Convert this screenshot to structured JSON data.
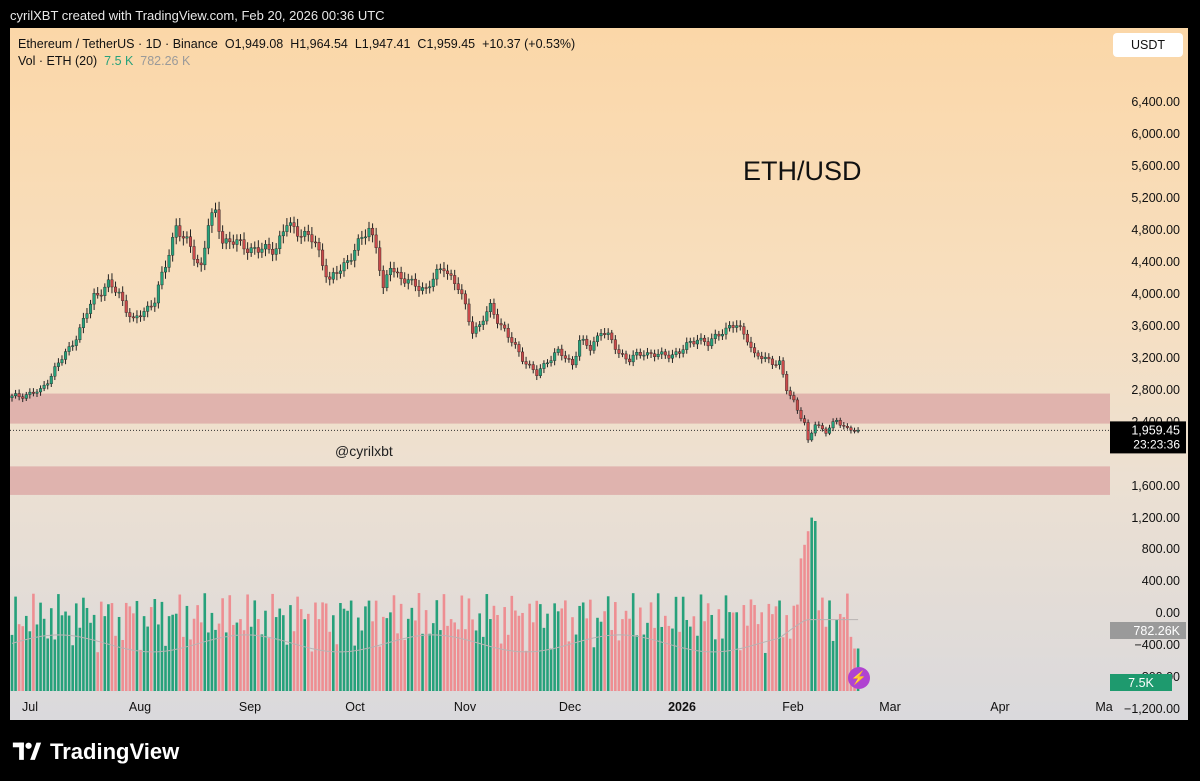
{
  "header": {
    "attribution": "cyrilXBT created with TradingView.com, Feb 20, 2026 00:36 UTC"
  },
  "legend": {
    "symbol": "Ethereum / TetherUS · 1D · Binance",
    "o_label": "O",
    "open": "1,949.08",
    "h_label": "H",
    "high": "1,964.54",
    "l_label": "L",
    "low": "1,947.41",
    "c_label": "C",
    "close": "1,959.45",
    "change": "+10.37 (+0.53%)",
    "vol_label": "Vol · ETH (20)",
    "vol_value": "7.5 K",
    "vol_ma_value": "782.26 K"
  },
  "currency": "USDT",
  "annotation": "ETH/USD",
  "watermark": "@cyrilxbt",
  "brand": "TradingView",
  "colors": {
    "up": "#26a17b",
    "down": "#c94a4a",
    "zone": "#dca8a5",
    "vol_up": "#26a17b",
    "vol_down": "#ee8e92"
  },
  "chart_data": {
    "type": "candlestick",
    "price_axis_ticks": [
      "6,400.00",
      "6,000.00",
      "5,600.00",
      "5,200.00",
      "4,800.00",
      "4,400.00",
      "4,000.00",
      "3,600.00",
      "3,200.00",
      "2,800.00",
      "2,400.00",
      "1,600.00",
      "1,200.00"
    ],
    "volume_axis_ticks": [
      "800.00",
      "400.00",
      "0.00",
      "−400.00",
      "−800.00",
      "−1,200.00"
    ],
    "time_axis_labels": [
      "Jul",
      "Aug",
      "Sep",
      "Oct",
      "Nov",
      "Dec",
      "2026",
      "Feb",
      "Mar",
      "Apr",
      "Ma"
    ],
    "current_price_label": "1,959.45",
    "countdown": "23:23:36",
    "volume_ma_label": "782.26K",
    "volume_last_label": "7.5K",
    "zones": [
      {
        "from": 2050,
        "to": 2450
      },
      {
        "from": 1100,
        "to": 1480
      }
    ],
    "current_price": 1959.45,
    "price_range": [
      1059,
      6653
    ],
    "start_date": "2025-06-28",
    "anchors": [
      [
        "2025-06-28",
        2400
      ],
      [
        "2025-07-01",
        2430
      ],
      [
        "2025-07-06",
        2480
      ],
      [
        "2025-07-10",
        2780
      ],
      [
        "2025-07-14",
        3050
      ],
      [
        "2025-07-17",
        3300
      ],
      [
        "2025-07-21",
        3750
      ],
      [
        "2025-07-25",
        3900
      ],
      [
        "2025-07-28",
        3780
      ],
      [
        "2025-08-01",
        3400
      ],
      [
        "2025-08-03",
        3500
      ],
      [
        "2025-08-07",
        3700
      ],
      [
        "2025-08-10",
        4150
      ],
      [
        "2025-08-13",
        4700
      ],
      [
        "2025-08-15",
        4500
      ],
      [
        "2025-08-17",
        4400
      ],
      [
        "2025-08-19",
        4200
      ],
      [
        "2025-08-20",
        4150
      ],
      [
        "2025-08-22",
        4700
      ],
      [
        "2025-08-24",
        4850
      ],
      [
        "2025-08-26",
        4500
      ],
      [
        "2025-08-30",
        4450
      ],
      [
        "2025-09-05",
        4350
      ],
      [
        "2025-09-10",
        4400
      ],
      [
        "2025-09-13",
        4700
      ],
      [
        "2025-09-17",
        4600
      ],
      [
        "2025-09-21",
        4450
      ],
      [
        "2025-09-23",
        4200
      ],
      [
        "2025-09-25",
        3950
      ],
      [
        "2025-09-28",
        4100
      ],
      [
        "2025-10-01",
        4300
      ],
      [
        "2025-10-04",
        4500
      ],
      [
        "2025-10-06",
        4650
      ],
      [
        "2025-10-08",
        4450
      ],
      [
        "2025-10-10",
        3800
      ],
      [
        "2025-10-12",
        4150
      ],
      [
        "2025-10-15",
        4000
      ],
      [
        "2025-10-18",
        3900
      ],
      [
        "2025-10-22",
        3850
      ],
      [
        "2025-10-27",
        4150
      ],
      [
        "2025-10-31",
        3850
      ],
      [
        "2025-11-02",
        3600
      ],
      [
        "2025-11-04",
        3300
      ],
      [
        "2025-11-06",
        3350
      ],
      [
        "2025-11-09",
        3600
      ],
      [
        "2025-11-11",
        3450
      ],
      [
        "2025-11-14",
        3200
      ],
      [
        "2025-11-17",
        3000
      ],
      [
        "2025-11-20",
        2800
      ],
      [
        "2025-11-22",
        2700
      ],
      [
        "2025-11-25",
        2900
      ],
      [
        "2025-11-28",
        3000
      ],
      [
        "2025-12-02",
        2850
      ],
      [
        "2025-12-04",
        3150
      ],
      [
        "2025-12-07",
        3050
      ],
      [
        "2025-12-10",
        3300
      ],
      [
        "2025-12-12",
        3200
      ],
      [
        "2025-12-15",
        3000
      ],
      [
        "2025-12-18",
        2900
      ],
      [
        "2025-12-22",
        3000
      ],
      [
        "2025-12-27",
        2950
      ],
      [
        "2026-01-01",
        3000
      ],
      [
        "2026-01-06",
        3200
      ],
      [
        "2026-01-09",
        3100
      ],
      [
        "2026-01-13",
        3300
      ],
      [
        "2026-01-17",
        3350
      ],
      [
        "2026-01-20",
        3200
      ],
      [
        "2026-01-22",
        2950
      ],
      [
        "2026-01-26",
        2900
      ],
      [
        "2026-01-29",
        2850
      ],
      [
        "2026-01-31",
        2500
      ],
      [
        "2026-02-02",
        2350
      ],
      [
        "2026-02-05",
        2050
      ],
      [
        "2026-02-06",
        1800
      ],
      [
        "2026-02-08",
        2050
      ],
      [
        "2026-02-11",
        1950
      ],
      [
        "2026-02-14",
        2080
      ],
      [
        "2026-02-17",
        1990
      ],
      [
        "2026-02-20",
        1959.45
      ]
    ]
  }
}
